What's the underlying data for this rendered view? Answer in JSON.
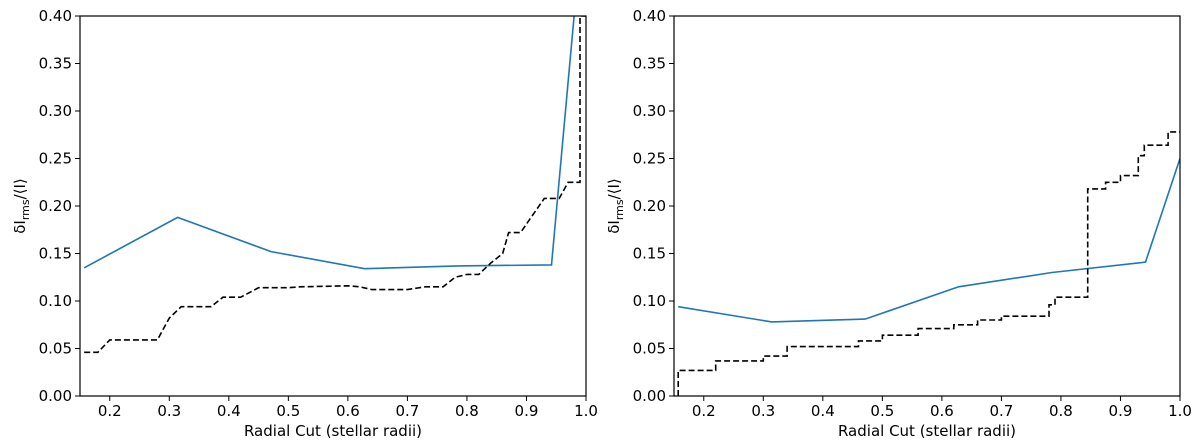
{
  "chart_data": [
    {
      "type": "line",
      "xlabel": "Radial Cut (stellar radii)",
      "ylabel": {
        "base": "δI",
        "sub": "rms",
        "suffix": "/⟨I⟩"
      },
      "xlim": [
        0.15,
        1.0
      ],
      "ylim": [
        0.0,
        0.4
      ],
      "xticks": [
        "0.2",
        "0.3",
        "0.4",
        "0.5",
        "0.6",
        "0.7",
        "0.8",
        "0.9",
        "1.0"
      ],
      "yticks": [
        "0.00",
        "0.05",
        "0.10",
        "0.15",
        "0.20",
        "0.25",
        "0.30",
        "0.35",
        "0.40"
      ],
      "grid": false,
      "series": [
        {
          "style": "solid",
          "color": "#1f77b4",
          "points": [
            [
              0.157,
              0.135
            ],
            [
              0.314,
              0.188
            ],
            [
              0.471,
              0.152
            ],
            [
              0.628,
              0.134
            ],
            [
              0.785,
              0.137
            ],
            [
              0.942,
              0.138
            ],
            [
              0.98,
              0.4
            ]
          ]
        },
        {
          "style": "dashed-step",
          "color": "#000000",
          "points": [
            [
              0.157,
              0.046
            ],
            [
              0.18,
              0.046
            ],
            [
              0.2,
              0.059
            ],
            [
              0.28,
              0.059
            ],
            [
              0.3,
              0.082
            ],
            [
              0.32,
              0.094
            ],
            [
              0.37,
              0.094
            ],
            [
              0.39,
              0.104
            ],
            [
              0.42,
              0.104
            ],
            [
              0.45,
              0.114
            ],
            [
              0.5,
              0.114
            ],
            [
              0.52,
              0.115
            ],
            [
              0.6,
              0.116
            ],
            [
              0.62,
              0.115
            ],
            [
              0.64,
              0.112
            ],
            [
              0.7,
              0.112
            ],
            [
              0.73,
              0.115
            ],
            [
              0.76,
              0.115
            ],
            [
              0.78,
              0.125
            ],
            [
              0.8,
              0.128
            ],
            [
              0.82,
              0.128
            ],
            [
              0.84,
              0.14
            ],
            [
              0.86,
              0.15
            ],
            [
              0.87,
              0.172
            ],
            [
              0.89,
              0.172
            ],
            [
              0.91,
              0.19
            ],
            [
              0.93,
              0.208
            ],
            [
              0.955,
              0.208
            ],
            [
              0.97,
              0.225
            ],
            [
              0.99,
              0.225
            ],
            [
              0.99,
              0.4
            ],
            [
              1.0,
              0.4
            ]
          ]
        }
      ]
    },
    {
      "type": "line",
      "xlabel": "Radial Cut (stellar radii)",
      "ylabel": {
        "base": "δI",
        "sub": "rms",
        "suffix": "/⟨I⟩"
      },
      "xlim": [
        0.15,
        1.0
      ],
      "ylim": [
        0.0,
        0.4
      ],
      "xticks": [
        "0.2",
        "0.3",
        "0.4",
        "0.5",
        "0.6",
        "0.7",
        "0.8",
        "0.9",
        "1.0"
      ],
      "yticks": [
        "0.00",
        "0.05",
        "0.10",
        "0.15",
        "0.20",
        "0.25",
        "0.30",
        "0.35",
        "0.40"
      ],
      "grid": false,
      "series": [
        {
          "style": "solid",
          "color": "#1f77b4",
          "points": [
            [
              0.157,
              0.094
            ],
            [
              0.314,
              0.078
            ],
            [
              0.471,
              0.081
            ],
            [
              0.628,
              0.115
            ],
            [
              0.785,
              0.13
            ],
            [
              0.942,
              0.141
            ],
            [
              1.0,
              0.25
            ]
          ]
        },
        {
          "style": "dashed-step",
          "color": "#000000",
          "points": [
            [
              0.157,
              0.0
            ],
            [
              0.157,
              0.027
            ],
            [
              0.22,
              0.027
            ],
            [
              0.22,
              0.037
            ],
            [
              0.3,
              0.037
            ],
            [
              0.3,
              0.042
            ],
            [
              0.34,
              0.042
            ],
            [
              0.34,
              0.052
            ],
            [
              0.46,
              0.052
            ],
            [
              0.46,
              0.058
            ],
            [
              0.5,
              0.058
            ],
            [
              0.5,
              0.064
            ],
            [
              0.56,
              0.064
            ],
            [
              0.56,
              0.071
            ],
            [
              0.62,
              0.071
            ],
            [
              0.62,
              0.075
            ],
            [
              0.66,
              0.075
            ],
            [
              0.66,
              0.08
            ],
            [
              0.7,
              0.08
            ],
            [
              0.7,
              0.084
            ],
            [
              0.78,
              0.084
            ],
            [
              0.78,
              0.096
            ],
            [
              0.79,
              0.096
            ],
            [
              0.79,
              0.104
            ],
            [
              0.845,
              0.104
            ],
            [
              0.845,
              0.218
            ],
            [
              0.875,
              0.218
            ],
            [
              0.875,
              0.225
            ],
            [
              0.9,
              0.225
            ],
            [
              0.9,
              0.232
            ],
            [
              0.93,
              0.232
            ],
            [
              0.93,
              0.253
            ],
            [
              0.94,
              0.253
            ],
            [
              0.94,
              0.264
            ],
            [
              0.98,
              0.264
            ],
            [
              0.98,
              0.278
            ],
            [
              1.0,
              0.278
            ]
          ]
        }
      ]
    }
  ]
}
